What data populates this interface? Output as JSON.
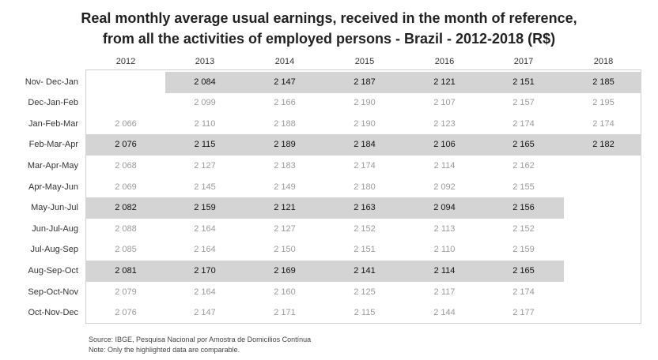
{
  "title_line1": "Real monthly average usual earnings, received in the month of reference,",
  "title_line2": "from all the activities of employed persons - Brazil - 2012-2018 (R$)",
  "footnote_source": "Source: IBGE, Pesquisa Nacional por Amostra de Domicílios Contínua",
  "footnote_note": "Note: Only the highlighted data are comparable.",
  "chart_data": {
    "type": "table",
    "columns": [
      "2012",
      "2013",
      "2014",
      "2015",
      "2016",
      "2017",
      "2018"
    ],
    "rows": [
      {
        "label": "Nov- Dec-Jan",
        "highlighted": true,
        "values": [
          "",
          "2 084",
          "2 147",
          "2 187",
          "2 121",
          "2 151",
          "2 185"
        ]
      },
      {
        "label": "Dec-Jan-Feb",
        "highlighted": false,
        "values": [
          "",
          "2 099",
          "2 166",
          "2 190",
          "2 107",
          "2 157",
          "2 195"
        ]
      },
      {
        "label": "Jan-Feb-Mar",
        "highlighted": false,
        "values": [
          "2 066",
          "2 110",
          "2 188",
          "2 190",
          "2 123",
          "2 174",
          "2 174"
        ]
      },
      {
        "label": "Feb-Mar-Apr",
        "highlighted": true,
        "values": [
          "2 076",
          "2 115",
          "2 189",
          "2 184",
          "2 106",
          "2 165",
          "2 182"
        ]
      },
      {
        "label": "Mar-Apr-May",
        "highlighted": false,
        "values": [
          "2 068",
          "2 127",
          "2 183",
          "2 174",
          "2 114",
          "2 162",
          ""
        ]
      },
      {
        "label": "Apr-May-Jun",
        "highlighted": false,
        "values": [
          "2 069",
          "2 145",
          "2 149",
          "2 180",
          "2 092",
          "2 155",
          ""
        ]
      },
      {
        "label": "May-Jun-Jul",
        "highlighted": true,
        "values": [
          "2 082",
          "2 159",
          "2 121",
          "2 163",
          "2 094",
          "2 156",
          ""
        ]
      },
      {
        "label": "Jun-Jul-Aug",
        "highlighted": false,
        "values": [
          "2 088",
          "2 164",
          "2 127",
          "2 152",
          "2 113",
          "2 152",
          ""
        ]
      },
      {
        "label": "Jul-Aug-Sep",
        "highlighted": false,
        "values": [
          "2 085",
          "2 164",
          "2 150",
          "2 151",
          "2 110",
          "2 159",
          ""
        ]
      },
      {
        "label": "Aug-Sep-Oct",
        "highlighted": true,
        "values": [
          "2 081",
          "2 170",
          "2 169",
          "2 141",
          "2 114",
          "2 165",
          ""
        ]
      },
      {
        "label": "Sep-Oct-Nov",
        "highlighted": false,
        "values": [
          "2 079",
          "2 164",
          "2 160",
          "2 125",
          "2 117",
          "2 174",
          ""
        ]
      },
      {
        "label": "Oct-Nov-Dec",
        "highlighted": false,
        "values": [
          "2 076",
          "2 147",
          "2 171",
          "2 115",
          "2 144",
          "2 177",
          ""
        ]
      }
    ],
    "highlight_color": "#d4d4d4",
    "highlight_text_color": "#111111",
    "plain_text_color": "#9a9a9a"
  }
}
